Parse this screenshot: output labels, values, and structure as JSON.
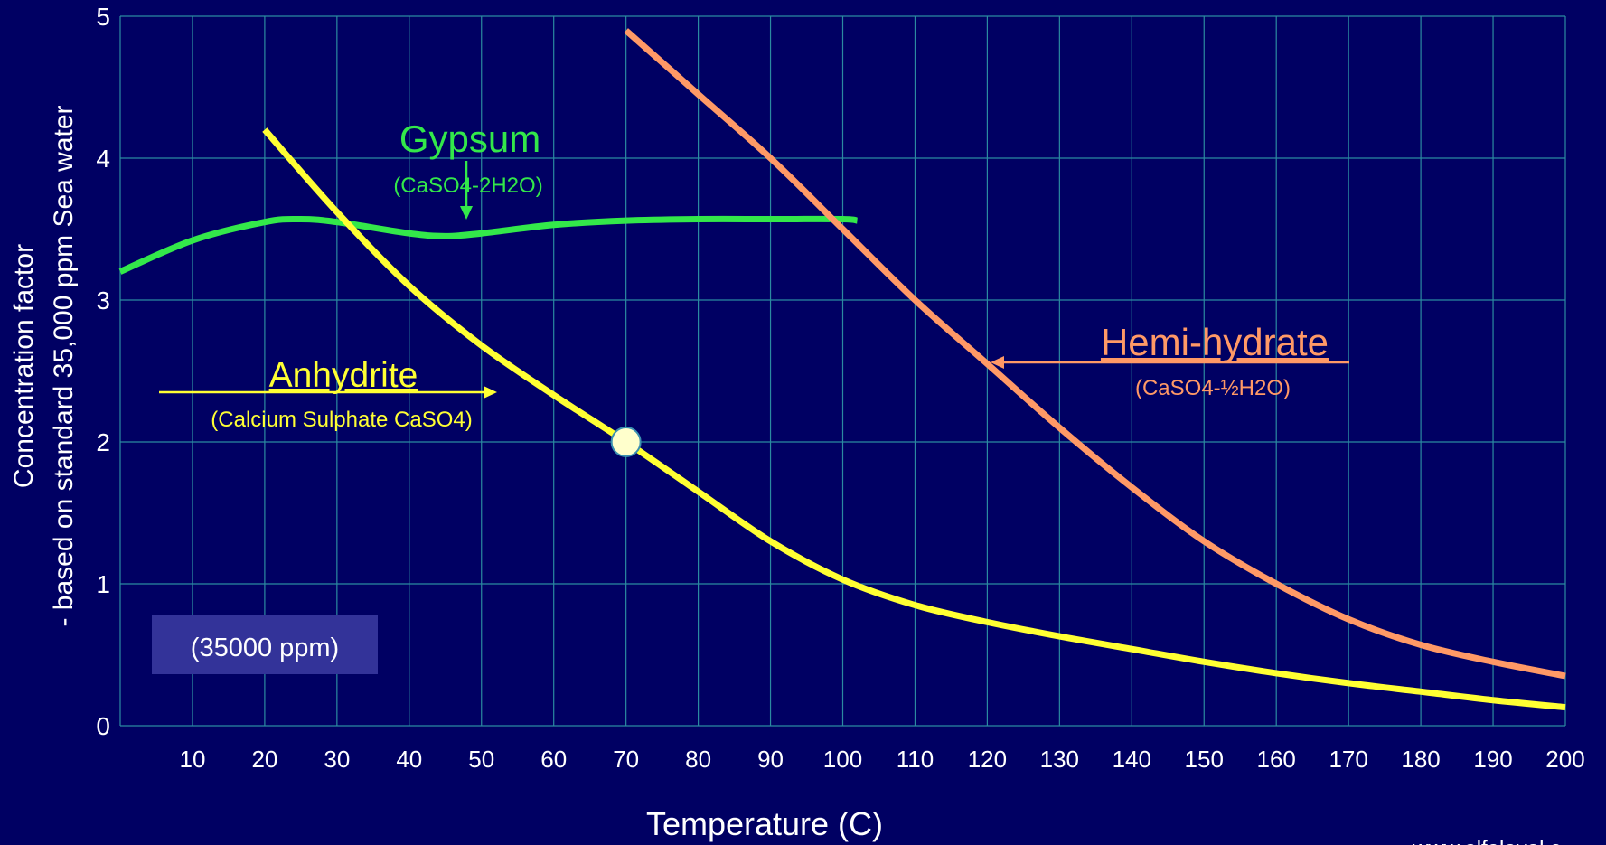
{
  "chart_data": {
    "type": "line",
    "xlabel": "Temperature (C)",
    "ylabel_line1": "Concentration factor",
    "ylabel_line2": "- based on standard 35,000 ppm Sea water",
    "xlim": [
      0,
      200
    ],
    "ylim": [
      0,
      5
    ],
    "x_ticks": [
      10,
      20,
      30,
      40,
      50,
      60,
      70,
      80,
      90,
      100,
      110,
      120,
      130,
      140,
      150,
      160,
      170,
      180,
      190,
      200
    ],
    "y_ticks": [
      0,
      1,
      2,
      3,
      4,
      5
    ],
    "grid": true,
    "series": [
      {
        "name": "Gypsum",
        "formula": "(CaSO4-2H2O)",
        "color": "#33e84a",
        "x": [
          0,
          10,
          20,
          25,
          30,
          40,
          45,
          50,
          60,
          70,
          80,
          90,
          100,
          102
        ],
        "y": [
          3.2,
          3.42,
          3.55,
          3.57,
          3.55,
          3.47,
          3.45,
          3.47,
          3.53,
          3.56,
          3.57,
          3.57,
          3.57,
          3.56
        ]
      },
      {
        "name": "Anhydrite",
        "formula": "(Calcium Sulphate CaSO4)",
        "color": "#ffff33",
        "x": [
          20,
          30,
          40,
          50,
          60,
          70,
          80,
          90,
          100,
          110,
          120,
          130,
          140,
          150,
          160,
          170,
          180,
          190,
          200
        ],
        "y": [
          4.2,
          3.62,
          3.1,
          2.68,
          2.33,
          2.0,
          1.65,
          1.3,
          1.03,
          0.85,
          0.73,
          0.63,
          0.54,
          0.45,
          0.37,
          0.3,
          0.24,
          0.18,
          0.13
        ]
      },
      {
        "name": "Hemi-hydrate",
        "formula": "(CaSO4-½H2O)",
        "color": "#ff9966",
        "x": [
          70,
          80,
          90,
          100,
          110,
          120,
          130,
          140,
          150,
          160,
          170,
          180,
          190,
          200
        ],
        "y": [
          4.9,
          4.45,
          4.0,
          3.5,
          3.0,
          2.55,
          2.1,
          1.68,
          1.3,
          1.0,
          0.75,
          0.57,
          0.45,
          0.35
        ]
      }
    ],
    "marker": {
      "x": 70,
      "y": 2.0,
      "color": "#ffffcc"
    },
    "annotations": {
      "ppm_box": "(35000 ppm)",
      "footer_url": "www.alfalaval.c"
    }
  }
}
